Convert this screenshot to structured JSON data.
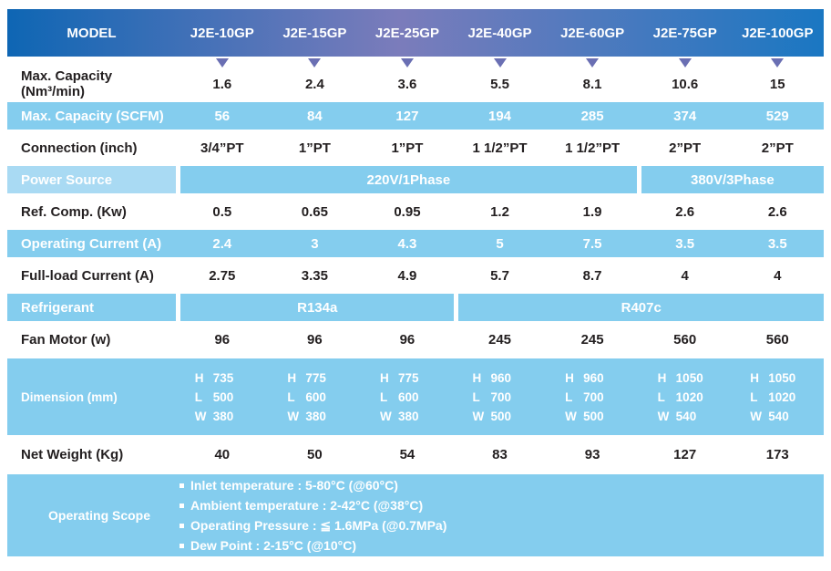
{
  "header": {
    "model_label": "MODEL",
    "models": [
      "J2E-10GP",
      "J2E-15GP",
      "J2E-25GP",
      "J2E-40GP",
      "J2E-60GP",
      "J2E-75GP",
      "J2E-100GP"
    ]
  },
  "rows": [
    {
      "kind": "plain",
      "style": "white",
      "label": "Max. Capacity (Nm³/min)",
      "values": [
        "1.6",
        "2.4",
        "3.6",
        "5.5",
        "8.1",
        "10.6",
        "15"
      ]
    },
    {
      "kind": "plain",
      "style": "blue",
      "label": "Max. Capacity (SCFM)",
      "values": [
        "56",
        "84",
        "127",
        "194",
        "285",
        "374",
        "529"
      ]
    },
    {
      "kind": "plain",
      "style": "white",
      "label": "Connection (inch)",
      "values": [
        "3/4”PT",
        "1”PT",
        "1”PT",
        "1 1/2”PT",
        "1 1/2”PT",
        "2”PT",
        "2”PT"
      ]
    },
    {
      "kind": "span",
      "style": "spanrow",
      "label": "Power Source",
      "label_light": true,
      "segments": [
        {
          "text": "220V/1Phase",
          "cols": 5
        },
        {
          "text": "380V/3Phase",
          "cols": 2
        }
      ]
    },
    {
      "kind": "plain",
      "style": "white",
      "label": "Ref. Comp. (Kw)",
      "values": [
        "0.5",
        "0.65",
        "0.95",
        "1.2",
        "1.9",
        "2.6",
        "2.6"
      ]
    },
    {
      "kind": "plain",
      "style": "blue",
      "label": "Operating Current (A)",
      "values": [
        "2.4",
        "3",
        "4.3",
        "5",
        "7.5",
        "3.5",
        "3.5"
      ]
    },
    {
      "kind": "plain",
      "style": "white",
      "label": "Full-load Current (A)",
      "values": [
        "2.75",
        "3.35",
        "4.9",
        "5.7",
        "8.7",
        "4",
        "4"
      ]
    },
    {
      "kind": "span",
      "style": "spanrow",
      "label": "Refrigerant",
      "label_light": false,
      "segments": [
        {
          "text": "R134a",
          "cols": 3
        },
        {
          "text": "R407c",
          "cols": 4
        }
      ]
    },
    {
      "kind": "plain",
      "style": "white",
      "label": "Fan Motor (w)",
      "values": [
        "96",
        "96",
        "96",
        "245",
        "245",
        "560",
        "560"
      ]
    },
    {
      "kind": "dimensions",
      "style": "dims",
      "label": "Dimension (mm)",
      "values": [
        [
          "H 735",
          "L 500",
          "W 380"
        ],
        [
          "H 775",
          "L 600",
          "W 380"
        ],
        [
          "H 775",
          "L 600",
          "W 380"
        ],
        [
          "H 960",
          "L 700",
          "W 500"
        ],
        [
          "H 960",
          "L 700",
          "W 500"
        ],
        [
          "H 1050",
          "L 1020",
          "W 540"
        ],
        [
          "H 1050",
          "L 1020",
          "W 540"
        ]
      ]
    },
    {
      "kind": "plain",
      "style": "white",
      "label": "Net Weight (Kg)",
      "values": [
        "40",
        "50",
        "54",
        "83",
        "93",
        "127",
        "173"
      ]
    },
    {
      "kind": "notes",
      "style": "notes",
      "label": "Operating Scope",
      "notes": [
        "Inlet temperature : 5-80°C (@60°C)",
        "Ambient temperature : 2-42°C (@38°C)",
        "Operating Pressure : ≦ 1.6MPa (@0.7MPa)",
        "Dew Point : 2-15°C (@10°C)"
      ]
    }
  ],
  "colors": {
    "header_gradient_left": "#0e66b4",
    "header_gradient_mid": "#7b7cbb",
    "header_gradient_right": "#1a77c2",
    "band_blue": "#84cdee",
    "band_blue_light": "#a9daf3",
    "triangle": "#6a6fb3",
    "text_dark": "#231f20",
    "text_light": "#ffffff"
  }
}
